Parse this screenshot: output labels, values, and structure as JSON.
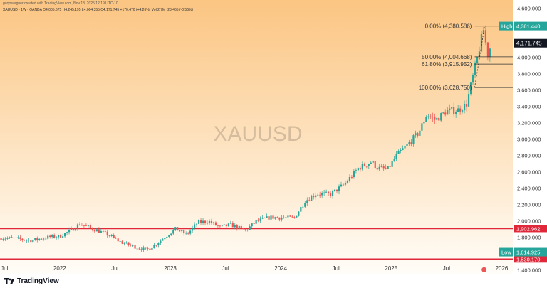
{
  "header": {
    "created": "garyswagner created with TradingView.com, Nov 13, 2025 12:19 UTC-10",
    "ticker_line": "XAUUSD · 1W · OANDA  O4,005.675  H4,245.195  L4,004.355  C4,171.745  +170.470 (+4.26%)  Vol 2.7M  -23.465 (-0.56%)"
  },
  "watermark": "XAUUSD",
  "brand": "TradingView",
  "colors": {
    "background_top": "#fbc582",
    "background_bottom": "#fffdf8",
    "up": "#26a69a",
    "down": "#ef5350",
    "support_line": "#e0283a",
    "fib_line": "#333333",
    "label_bg": "#26a69a",
    "price_bg": "#131722"
  },
  "chart_data": {
    "type": "candlestick",
    "symbol": "XAUUSD",
    "interval": "1W",
    "source": "OANDA",
    "ylim": [
      1350,
      4700
    ],
    "y_ticks": [
      "1,400.000",
      "1,600.000",
      "1,800.000",
      "2,000.000",
      "2,200.000",
      "2,400.000",
      "2,600.000",
      "2,800.000",
      "3,000.000",
      "3,200.000",
      "3,400.000",
      "3,600.000",
      "3,800.000",
      "4,000.000",
      "4,200.000",
      "4,400.000",
      "4,600.000"
    ],
    "x_ticks": [
      {
        "label": "Jul",
        "t": 2021.5
      },
      {
        "label": "2022",
        "t": 2022.0
      },
      {
        "label": "Jul",
        "t": 2022.5
      },
      {
        "label": "2023",
        "t": 2023.0
      },
      {
        "label": "Jul",
        "t": 2023.5
      },
      {
        "label": "2024",
        "t": 2024.0
      },
      {
        "label": "Jul",
        "t": 2024.5
      },
      {
        "label": "2025",
        "t": 2025.0
      },
      {
        "label": "Jul",
        "t": 2025.5
      },
      {
        "label": "2026",
        "t": 2026.0
      }
    ],
    "xlim": [
      2021.46,
      2026.1
    ],
    "price_path": [
      [
        2021.47,
        1790
      ],
      [
        2021.6,
        1780
      ],
      [
        2021.75,
        1760
      ],
      [
        2021.9,
        1800
      ],
      [
        2022.0,
        1810
      ],
      [
        2022.1,
        1880
      ],
      [
        2022.18,
        1960
      ],
      [
        2022.3,
        1900
      ],
      [
        2022.42,
        1840
      ],
      [
        2022.55,
        1740
      ],
      [
        2022.68,
        1680
      ],
      [
        2022.78,
        1640
      ],
      [
        2022.86,
        1700
      ],
      [
        2022.95,
        1800
      ],
      [
        2023.05,
        1900
      ],
      [
        2023.15,
        1830
      ],
      [
        2023.25,
        1980
      ],
      [
        2023.35,
        1990
      ],
      [
        2023.45,
        1920
      ],
      [
        2023.55,
        1950
      ],
      [
        2023.68,
        1880
      ],
      [
        2023.78,
        1990
      ],
      [
        2023.9,
        2040
      ],
      [
        2024.0,
        2040
      ],
      [
        2024.12,
        2030
      ],
      [
        2024.22,
        2240
      ],
      [
        2024.32,
        2330
      ],
      [
        2024.45,
        2320
      ],
      [
        2024.58,
        2450
      ],
      [
        2024.7,
        2640
      ],
      [
        2024.82,
        2720
      ],
      [
        2024.88,
        2640
      ],
      [
        2024.97,
        2630
      ],
      [
        2025.05,
        2800
      ],
      [
        2025.15,
        2930
      ],
      [
        2025.25,
        3080
      ],
      [
        2025.32,
        3300
      ],
      [
        2025.4,
        3230
      ],
      [
        2025.5,
        3340
      ],
      [
        2025.6,
        3350
      ],
      [
        2025.68,
        3420
      ],
      [
        2025.72,
        3650
      ],
      [
        2025.78,
        4000
      ],
      [
        2025.82,
        4250
      ],
      [
        2025.84,
        4360
      ],
      [
        2025.86,
        4110
      ],
      [
        2025.88,
        4000
      ],
      [
        2025.9,
        4171.745
      ]
    ],
    "horizontal_levels": [
      {
        "name": "support",
        "value": 1902.962,
        "label": "1,902.962"
      },
      {
        "name": "low",
        "value": 1530,
        "label": "1,530.170"
      }
    ],
    "fibonacci": [
      {
        "ratio": "0.00%",
        "value": 4380.586,
        "label": "0.00% (4,380.586)"
      },
      {
        "ratio": "50.00%",
        "value": 4004.668,
        "label": "50.00% (4,004.668)"
      },
      {
        "ratio": "61.80%",
        "value": 3915.952,
        "label": "61.80% (3,915.952)"
      },
      {
        "ratio": "100.00%",
        "value": 3628.75,
        "label": "100.00% (3,628.750)"
      }
    ],
    "markers": [
      {
        "name": "high",
        "text": "High",
        "value": 4381.44,
        "label": "4,381.440"
      },
      {
        "name": "last",
        "value": 4171.745,
        "label": "4,171.745"
      },
      {
        "name": "low",
        "text": "Low",
        "value": 1614.925,
        "label": "1,614.925"
      }
    ]
  }
}
